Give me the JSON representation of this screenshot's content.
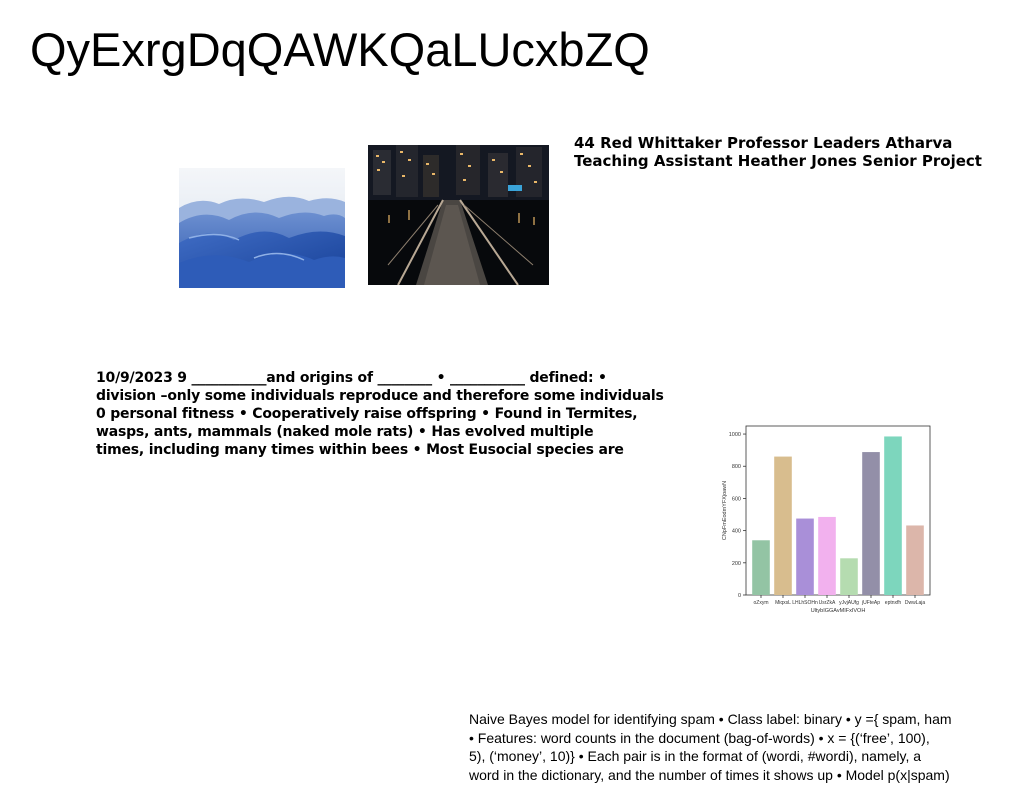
{
  "title": "QyExrgDqQAWKQaLUcxbZQ",
  "info": {
    "lines": [
      "44 Red Whittaker Professor Leaders Atharva",
      "Teaching Assistant Heather Jones Senior Project"
    ]
  },
  "notes": {
    "lines": [
      "10/9/2023 9 ___________and origins of ________ • ___________ defined: •",
      "division –only some individuals reproduce and therefore some individuals",
      "0 personal fitness • Cooperatively raise offspring • Found in Termites,",
      "wasps, ants, mammals (naked mole rats) • Has evolved multiple",
      "times, including many times within bees • Most Eusocial species are"
    ]
  },
  "spam_text": {
    "lines": [
      "Naive Bayes model for identifying spam • Class label: binary • y ={ spam, ham",
      "• Features: word counts in the document (bag-of-words) • x = {(‘free’, 100),",
      "5), (‘money’, 10)} • Each pair is in the format of (wordi, #wordi), namely, a",
      "word in the dictionary, and the number of times it shows up • Model p(x|spam)"
    ]
  },
  "chart_data": {
    "type": "bar",
    "categories": [
      "oZxym",
      "MiqxsL",
      "LHLhSOHn",
      "UsrZkA",
      "yJvjAUfg",
      "jUFteAp",
      "eptnxfh",
      "DwwLaja"
    ],
    "values": [
      340,
      860,
      475,
      485,
      228,
      888,
      985,
      432
    ],
    "colors": [
      "#93c4a4",
      "#d8bd8e",
      "#a98fd8",
      "#f2b1ee",
      "#b5dcb0",
      "#938fa8",
      "#7dd6bd",
      "#dcb6aa"
    ],
    "xlabel": "UltybIGGAvMIFxIVOH",
    "ylabel": "CNpFmEodmYFXjoawN",
    "ylim": [
      0,
      1050
    ],
    "yticks": [
      0,
      200,
      400,
      600,
      800,
      1000
    ],
    "grid": false
  }
}
